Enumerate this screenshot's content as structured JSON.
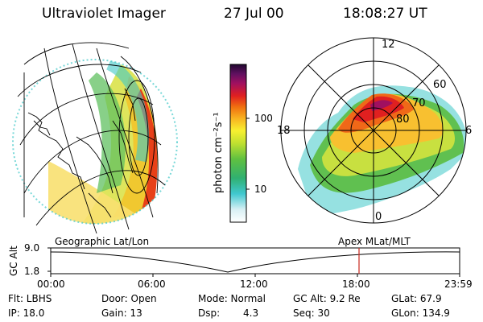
{
  "header": {
    "title": "Ultraviolet Imager",
    "date": "27 Jul 00",
    "time": "18:08:27 UT"
  },
  "colorbar": {
    "label": "photon cm⁻²s⁻¹",
    "ticks": [
      "100",
      "10"
    ]
  },
  "polar": {
    "lat_labels": [
      "60",
      "70",
      "80"
    ],
    "mlt_labels": [
      "12",
      "18",
      "6",
      "0"
    ]
  },
  "timeline": {
    "left_title": "Geographic Lat/Lon",
    "right_title": "Apex MLat/MLT",
    "y_axis_label": "GC Alt",
    "y_ticks": [
      "9.0",
      "1.8"
    ],
    "x_ticks": [
      "00:00",
      "06:00",
      "12:00",
      "18:00",
      "23:59"
    ],
    "marker_time": "18:08:27",
    "marker_color": "#c8281e"
  },
  "info": {
    "flt": "Flt: LBHS",
    "ip": "IP: 18.0",
    "door": "Door: Open",
    "gain": "Gain: 13",
    "mode": "Mode: Normal",
    "dsp_label": "Dsp:",
    "dsp_value": "4.3",
    "gc_alt": "GC Alt: 9.2 Re",
    "seq": "Seq: 30",
    "glat": "GLat: 67.9",
    "glon": "GLon: 134.9"
  }
}
